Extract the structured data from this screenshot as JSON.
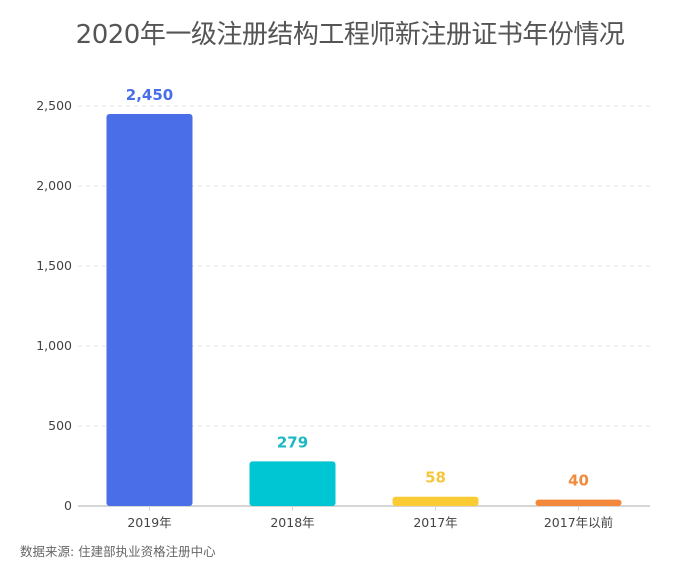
{
  "chart_data": {
    "type": "bar",
    "title": "2020年一级注册结构工程师新注册证书年份情况",
    "categories": [
      "2019年",
      "2018年",
      "2017年",
      "2017年以前"
    ],
    "values": [
      2450,
      279,
      58,
      40
    ],
    "data_labels": [
      "2,450",
      "279",
      "58",
      "40"
    ],
    "colors": [
      "#4a6ee8",
      "#00c5d2",
      "#fbcb34",
      "#f4883a"
    ],
    "label_colors": [
      "#4a6ee8",
      "#1ab9c4",
      "#f4c73c",
      "#ef8a3e"
    ],
    "ylim": [
      0,
      2500
    ],
    "yticks": [
      0,
      500,
      1000,
      1500,
      2000,
      2500
    ],
    "ytick_labels": [
      "0",
      "500",
      "1,000",
      "1,500",
      "2,000",
      "2,500"
    ],
    "grid": true,
    "xlabel": "",
    "ylabel": ""
  },
  "source": "数据来源: 住建部执业资格注册中心"
}
